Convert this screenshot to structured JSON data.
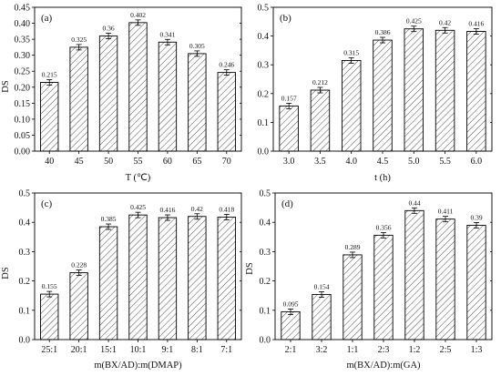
{
  "chart_data": [
    {
      "panel": "(a)",
      "type": "bar",
      "xlabel": "T (℃)",
      "ylabel": "DS",
      "categories": [
        "40",
        "45",
        "50",
        "55",
        "60",
        "65",
        "70"
      ],
      "values": [
        0.215,
        0.325,
        0.36,
        0.402,
        0.341,
        0.305,
        0.246
      ],
      "value_labels": [
        "0.215",
        "0.325",
        "0.36",
        "0.402",
        "0.341",
        "0.305",
        "0.246"
      ],
      "ylim": [
        0.0,
        0.45
      ],
      "yticks": [
        "0.00",
        "0.05",
        "0.10",
        "0.15",
        "0.20",
        "0.25",
        "0.30",
        "0.35",
        "0.40",
        "0.45"
      ],
      "error_bars": true,
      "fill": "diagonal-hatch"
    },
    {
      "panel": "(b)",
      "type": "bar",
      "xlabel": "t (h)",
      "ylabel": "",
      "categories": [
        "3.0",
        "3.5",
        "4.0",
        "4.5",
        "5.0",
        "5.5",
        "6.0"
      ],
      "values": [
        0.157,
        0.212,
        0.315,
        0.386,
        0.425,
        0.42,
        0.416
      ],
      "value_labels": [
        "0.157",
        "0.212",
        "0.315",
        "0.386",
        "0.425",
        "0.42",
        "0.416"
      ],
      "ylim": [
        0.0,
        0.5
      ],
      "yticks": [
        "0.0",
        "0.1",
        "0.2",
        "0.3",
        "0.4",
        "0.5"
      ],
      "error_bars": true,
      "fill": "diagonal-hatch"
    },
    {
      "panel": "(c)",
      "type": "bar",
      "xlabel": "m(BX/AD):m(DMAP)",
      "ylabel": "DS",
      "categories": [
        "25:1",
        "20:1",
        "15:1",
        "10:1",
        "9:1",
        "8:1",
        "7:1"
      ],
      "values": [
        0.155,
        0.228,
        0.385,
        0.425,
        0.416,
        0.42,
        0.418
      ],
      "value_labels": [
        "0.155",
        "0.228",
        "0.385",
        "0.425",
        "0.416",
        "0.42",
        "0.418"
      ],
      "ylim": [
        0.0,
        0.5
      ],
      "yticks": [
        "0.0",
        "0.1",
        "0.2",
        "0.3",
        "0.4",
        "0.5"
      ],
      "error_bars": true,
      "fill": "diagonal-hatch"
    },
    {
      "panel": "(d)",
      "type": "bar",
      "xlabel": "m(BX/AD):m(GA)",
      "ylabel": "DS",
      "categories": [
        "2:1",
        "3:2",
        "1:1",
        "2:3",
        "1:2",
        "2:5",
        "1:3"
      ],
      "values": [
        0.095,
        0.154,
        0.289,
        0.356,
        0.44,
        0.411,
        0.39
      ],
      "value_labels": [
        "0.095",
        "0.154",
        "0.289",
        "0.356",
        "0.44",
        "0.411",
        "0.39"
      ],
      "ylim": [
        0.0,
        0.5
      ],
      "yticks": [
        "0.0",
        "0.1",
        "0.2",
        "0.3",
        "0.4",
        "0.5"
      ],
      "error_bars": true,
      "fill": "diagonal-hatch"
    }
  ]
}
